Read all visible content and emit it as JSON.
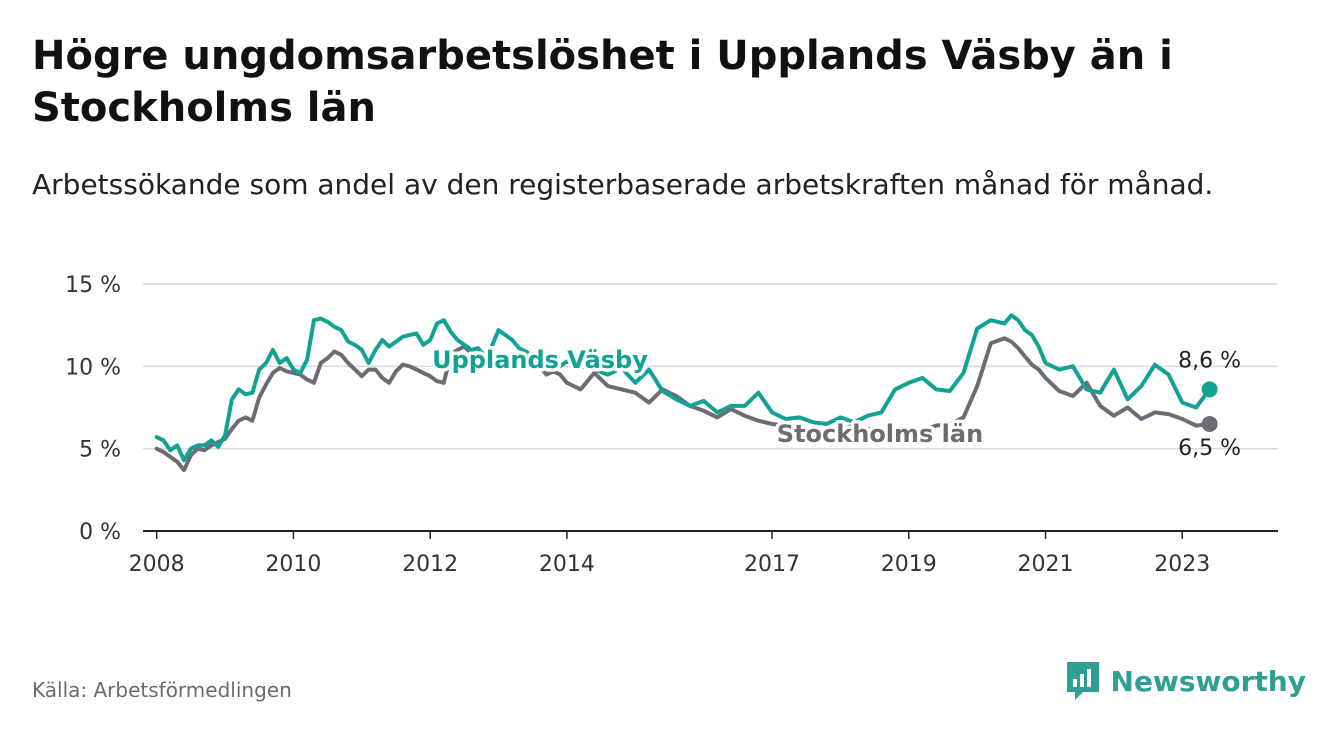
{
  "title": "Högre ungdomsarbetslöshet i Upplands Väsby än i Stockholms län",
  "subtitle": "Arbetssökande som andel av den registerbaserade arbetskraften månad för månad.",
  "source": "Källa: Arbetsförmedlingen",
  "brand": "Newsworthy",
  "chart_data": {
    "type": "line",
    "title": "Högre ungdomsarbetslöshet i Upplands Väsby än i Stockholms län",
    "xlabel": "",
    "ylabel": "",
    "xlim": [
      2007.8,
      2024.4
    ],
    "ylim": [
      0,
      15
    ],
    "grid": true,
    "y_ticks": [
      0,
      5,
      10,
      15
    ],
    "y_tick_labels": [
      "0 %",
      "5 %",
      "10 %",
      "15 %"
    ],
    "x_ticks": [
      2008,
      2010,
      2012,
      2014,
      2017,
      2019,
      2021,
      2023
    ],
    "x_tick_labels": [
      "2008",
      "2010",
      "2012",
      "2014",
      "2017",
      "2019",
      "2021",
      "2023"
    ],
    "series": [
      {
        "name": "Upplands Väsby",
        "color": "#12a294",
        "end_label": "8,6 %",
        "end_value": 8.6,
        "x": [
          2008.0,
          2008.1,
          2008.2,
          2008.3,
          2008.4,
          2008.5,
          2008.6,
          2008.7,
          2008.8,
          2008.9,
          2009.0,
          2009.1,
          2009.2,
          2009.3,
          2009.4,
          2009.5,
          2009.6,
          2009.7,
          2009.8,
          2009.9,
          2010.0,
          2010.1,
          2010.2,
          2010.3,
          2010.4,
          2010.5,
          2010.6,
          2010.7,
          2010.8,
          2010.9,
          2011.0,
          2011.1,
          2011.2,
          2011.3,
          2011.4,
          2011.5,
          2011.6,
          2011.7,
          2011.8,
          2011.9,
          2012.0,
          2012.1,
          2012.2,
          2012.3,
          2012.4,
          2012.5,
          2012.6,
          2012.7,
          2012.8,
          2012.9,
          2013.0,
          2013.1,
          2013.2,
          2013.3,
          2013.4,
          2013.5,
          2013.6,
          2013.7,
          2013.8,
          2013.9,
          2014.0,
          2014.2,
          2014.4,
          2014.6,
          2014.8,
          2015.0,
          2015.2,
          2015.4,
          2015.6,
          2015.8,
          2016.0,
          2016.2,
          2016.4,
          2016.6,
          2016.8,
          2017.0,
          2017.2,
          2017.4,
          2017.6,
          2017.8,
          2018.0,
          2018.2,
          2018.4,
          2018.6,
          2018.8,
          2019.0,
          2019.2,
          2019.4,
          2019.6,
          2019.8,
          2020.0,
          2020.2,
          2020.4,
          2020.5,
          2020.6,
          2020.7,
          2020.8,
          2020.9,
          2021.0,
          2021.2,
          2021.4,
          2021.6,
          2021.8,
          2022.0,
          2022.2,
          2022.4,
          2022.6,
          2022.8,
          2023.0,
          2023.2,
          2023.4
        ],
        "values": [
          5.7,
          5.5,
          4.9,
          5.2,
          4.3,
          5.0,
          5.2,
          5.2,
          5.5,
          5.1,
          5.8,
          8.0,
          8.6,
          8.3,
          8.4,
          9.8,
          10.2,
          11.0,
          10.2,
          10.5,
          9.8,
          9.6,
          10.4,
          12.8,
          12.9,
          12.7,
          12.4,
          12.2,
          11.5,
          11.3,
          11.0,
          10.2,
          11.0,
          11.6,
          11.2,
          11.5,
          11.8,
          11.9,
          12.0,
          11.3,
          11.6,
          12.6,
          12.8,
          12.1,
          11.6,
          11.3,
          11.0,
          11.1,
          10.6,
          11.2,
          12.2,
          11.9,
          11.6,
          11.1,
          10.9,
          10.6,
          10.4,
          10.0,
          10.5,
          10.0,
          10.3,
          10.0,
          9.8,
          9.5,
          9.9,
          9.0,
          9.8,
          8.5,
          8.0,
          7.6,
          7.9,
          7.2,
          7.6,
          7.6,
          8.4,
          7.2,
          6.8,
          6.9,
          6.6,
          6.5,
          6.9,
          6.6,
          7.0,
          7.2,
          8.6,
          9.0,
          9.3,
          8.6,
          8.5,
          9.6,
          12.3,
          12.8,
          12.6,
          13.1,
          12.8,
          12.2,
          11.9,
          11.2,
          10.2,
          9.8,
          10.0,
          8.6,
          8.4,
          9.8,
          8.0,
          8.8,
          10.1,
          9.5,
          7.8,
          7.5,
          8.6
        ]
      },
      {
        "name": "Stockholms län",
        "color": "#6e6b74",
        "end_label": "6,5 %",
        "end_value": 6.5,
        "x": [
          2008.0,
          2008.1,
          2008.2,
          2008.3,
          2008.4,
          2008.5,
          2008.6,
          2008.7,
          2008.8,
          2008.9,
          2009.0,
          2009.1,
          2009.2,
          2009.3,
          2009.4,
          2009.5,
          2009.6,
          2009.7,
          2009.8,
          2009.9,
          2010.0,
          2010.1,
          2010.2,
          2010.3,
          2010.4,
          2010.5,
          2010.6,
          2010.7,
          2010.8,
          2010.9,
          2011.0,
          2011.1,
          2011.2,
          2011.3,
          2011.4,
          2011.5,
          2011.6,
          2011.7,
          2011.8,
          2011.9,
          2012.0,
          2012.1,
          2012.2,
          2012.3,
          2012.4,
          2012.5,
          2012.6,
          2012.7,
          2012.8,
          2012.9,
          2013.0,
          2013.1,
          2013.2,
          2013.3,
          2013.4,
          2013.5,
          2013.6,
          2013.7,
          2013.8,
          2013.9,
          2014.0,
          2014.2,
          2014.4,
          2014.6,
          2014.8,
          2015.0,
          2015.2,
          2015.4,
          2015.6,
          2015.8,
          2016.0,
          2016.2,
          2016.4,
          2016.6,
          2016.8,
          2017.0,
          2017.2,
          2017.4,
          2017.6,
          2017.8,
          2018.0,
          2018.2,
          2018.4,
          2018.6,
          2018.8,
          2019.0,
          2019.2,
          2019.4,
          2019.6,
          2019.8,
          2020.0,
          2020.2,
          2020.4,
          2020.5,
          2020.6,
          2020.7,
          2020.8,
          2020.9,
          2021.0,
          2021.2,
          2021.4,
          2021.6,
          2021.8,
          2022.0,
          2022.2,
          2022.4,
          2022.6,
          2022.8,
          2023.0,
          2023.2,
          2023.4
        ],
        "values": [
          5.0,
          4.8,
          4.5,
          4.2,
          3.7,
          4.6,
          5.0,
          4.9,
          5.2,
          5.4,
          5.6,
          6.2,
          6.7,
          6.9,
          6.7,
          8.1,
          8.9,
          9.6,
          9.9,
          9.7,
          9.6,
          9.5,
          9.2,
          9.0,
          10.2,
          10.5,
          10.9,
          10.7,
          10.2,
          9.8,
          9.4,
          9.8,
          9.8,
          9.3,
          9.0,
          9.7,
          10.1,
          10.0,
          9.8,
          9.6,
          9.4,
          9.1,
          9.0,
          10.7,
          11.0,
          11.2,
          10.8,
          10.5,
          10.8,
          10.5,
          10.6,
          10.1,
          9.9,
          10.0,
          10.0,
          10.3,
          10.0,
          9.5,
          9.7,
          9.5,
          9.0,
          8.6,
          9.6,
          8.8,
          8.6,
          8.4,
          7.8,
          8.6,
          8.2,
          7.6,
          7.3,
          6.9,
          7.4,
          7.0,
          6.7,
          6.5,
          6.4,
          6.2,
          6.0,
          6.0,
          6.2,
          6.4,
          6.2,
          6.0,
          6.0,
          6.0,
          6.1,
          6.4,
          6.5,
          6.9,
          8.8,
          11.4,
          11.7,
          11.5,
          11.1,
          10.6,
          10.1,
          9.8,
          9.3,
          8.5,
          8.2,
          9.0,
          7.6,
          7.0,
          7.5,
          6.8,
          7.2,
          7.1,
          6.8,
          6.4,
          6.5
        ]
      }
    ]
  }
}
